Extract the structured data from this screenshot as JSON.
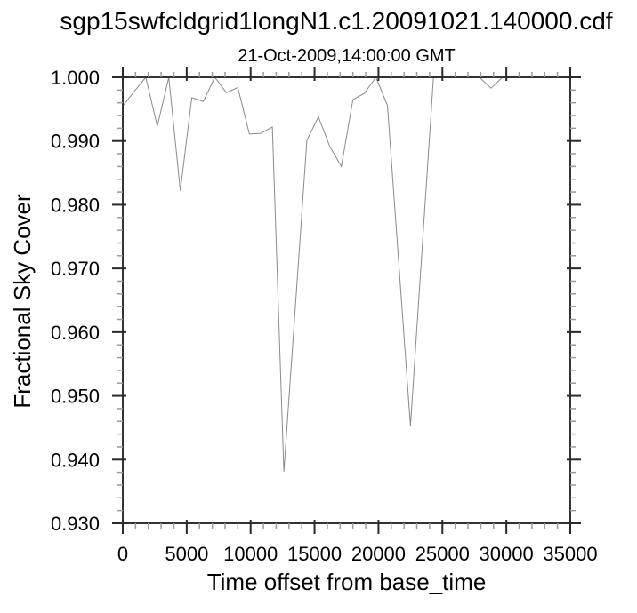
{
  "header": {
    "title": "sgp15swfcldgrid1longN1.c1.20091021.140000.cdf",
    "subtitle": "21-Oct-2009,14:00:00 GMT"
  },
  "chart_data": {
    "type": "line",
    "title": "sgp15swfcldgrid1longN1.c1.20091021.140000.cdf",
    "subtitle": "21-Oct-2009,14:00:00 GMT",
    "xlabel": "Time offset from base_time",
    "ylabel": "Fractional Sky Cover",
    "xlim": [
      0,
      35000
    ],
    "ylim": [
      0.93,
      1.0
    ],
    "grid": false,
    "legend": null,
    "x_axis": {
      "tick_values": [
        0,
        5000,
        10000,
        15000,
        20000,
        25000,
        30000,
        35000
      ],
      "tick_labels": [
        "0",
        "5000",
        "10000",
        "15000",
        "20000",
        "25000",
        "30000",
        "35000"
      ],
      "minor_step": 1000
    },
    "y_axis": {
      "tick_values": [
        0.93,
        0.94,
        0.95,
        0.96,
        0.97,
        0.98,
        0.99,
        1.0
      ],
      "tick_labels": [
        "0.930",
        "0.940",
        "0.950",
        "0.960",
        "0.970",
        "0.980",
        "0.990",
        "1.000"
      ],
      "minor_step": 0.002
    },
    "series": [
      {
        "name": "fractional_sky_cover",
        "color": "#8a8a8a",
        "x": [
          0,
          900,
          1800,
          2700,
          3600,
          4500,
          5400,
          6300,
          7200,
          8100,
          9000,
          9900,
          10800,
          11700,
          12600,
          13500,
          14400,
          15300,
          16200,
          17100,
          18000,
          18900,
          19800,
          20700,
          21600,
          22500,
          23400,
          24300,
          25200,
          26100,
          27000,
          27900,
          28800,
          29700,
          30600,
          31500,
          32400,
          33300,
          34200,
          35100
        ],
        "y": [
          0.9955,
          0.9978,
          1.0,
          0.9923,
          1.0,
          0.9822,
          0.9968,
          0.9962,
          1.0,
          0.9976,
          0.9984,
          0.9911,
          0.9912,
          0.9922,
          0.9381,
          0.964,
          0.9901,
          0.9938,
          0.9891,
          0.986,
          0.9965,
          0.9975,
          1.0,
          0.9956,
          0.9705,
          0.9453,
          0.9727,
          1.0,
          1.0,
          1.0,
          1.0,
          1.0,
          0.9983,
          1.0,
          1.0,
          1.0,
          1.0,
          1.0,
          1.0,
          1.0
        ]
      }
    ],
    "frame_color": "#333333",
    "major_tick_color": "#2a2a2a",
    "minor_tick_color": "#9a9a9a",
    "text_color": "#000000",
    "background_color": "#ffffff"
  }
}
